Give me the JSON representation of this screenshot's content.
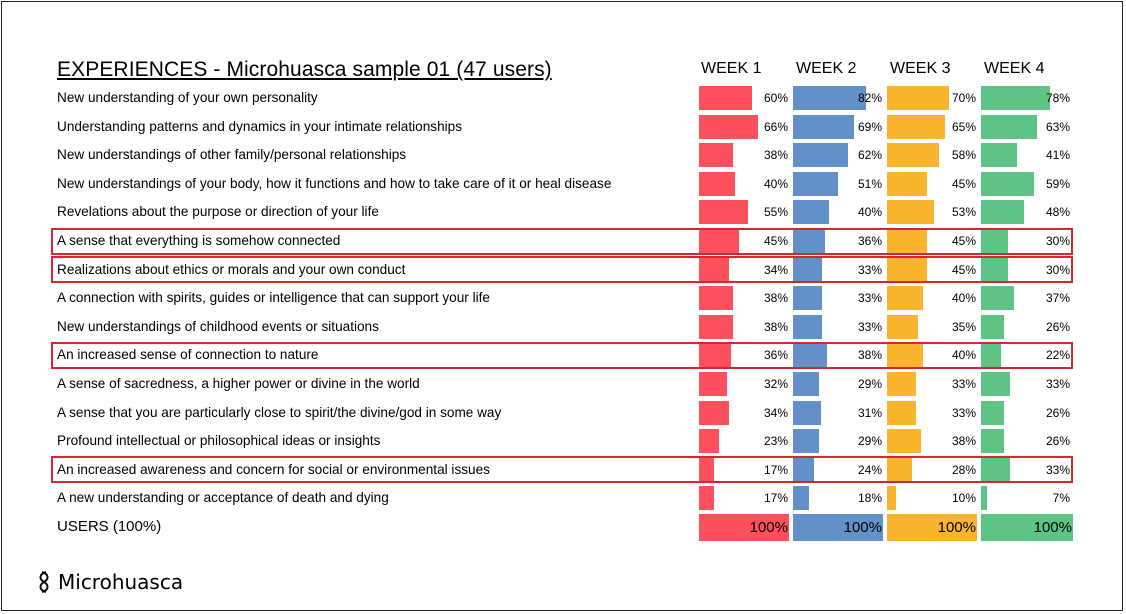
{
  "title": "EXPERIENCES - Microhuasca sample 01 (47 users)",
  "weeks": [
    "WEEK 1",
    "WEEK 2",
    "WEEK 3",
    "WEEK 4"
  ],
  "colors": [
    "#fc515c",
    "#6390c9",
    "#fbb42e",
    "#5dc485"
  ],
  "highlight_color": "#d6262e",
  "users_row": {
    "label": "USERS (100%)",
    "values": [
      "100%",
      "100%",
      "100%",
      "100%"
    ]
  },
  "logo_text": "Microhuasca",
  "chart_data": {
    "type": "bar",
    "title": "EXPERIENCES - Microhuasca sample 01 (47 users)",
    "series": [
      {
        "name": "WEEK 1",
        "values": [
          60,
          66,
          38,
          40,
          55,
          45,
          34,
          38,
          38,
          36,
          32,
          34,
          23,
          17,
          17
        ]
      },
      {
        "name": "WEEK 2",
        "values": [
          82,
          69,
          62,
          51,
          40,
          36,
          33,
          33,
          33,
          38,
          29,
          31,
          29,
          24,
          18
        ]
      },
      {
        "name": "WEEK 3",
        "values": [
          70,
          65,
          58,
          45,
          53,
          45,
          45,
          40,
          35,
          40,
          33,
          33,
          38,
          28,
          10
        ]
      },
      {
        "name": "WEEK 4",
        "values": [
          78,
          63,
          41,
          59,
          48,
          30,
          30,
          37,
          26,
          22,
          33,
          26,
          26,
          33,
          7
        ]
      }
    ],
    "categories": [
      "New understanding of your own personality",
      "Understanding patterns and dynamics in your intimate relationships",
      "New understandings of other family/personal relationships",
      "New understandings of your body, how it functions and how to take care of it or heal disease",
      "Revelations about the purpose or direction of your life",
      "A sense that everything is somehow connected",
      "Realizations about ethics or morals and your own conduct",
      "A connection with spirits, guides or intelligence that can support your life",
      "New understandings of childhood events or situations",
      "An increased sense of connection to nature",
      "A sense of sacredness, a higher power or divine in the world",
      "A sense that you are particularly close to spirit/the divine/god in some way",
      "Profound intellectual or philosophical ideas or insights",
      "An increased awareness and concern for social or environmental issues",
      "A new understanding or acceptance of death and dying"
    ],
    "highlighted_rows": [
      5,
      6,
      9,
      13
    ],
    "ylim": [
      0,
      100
    ],
    "value_suffix": "%"
  }
}
